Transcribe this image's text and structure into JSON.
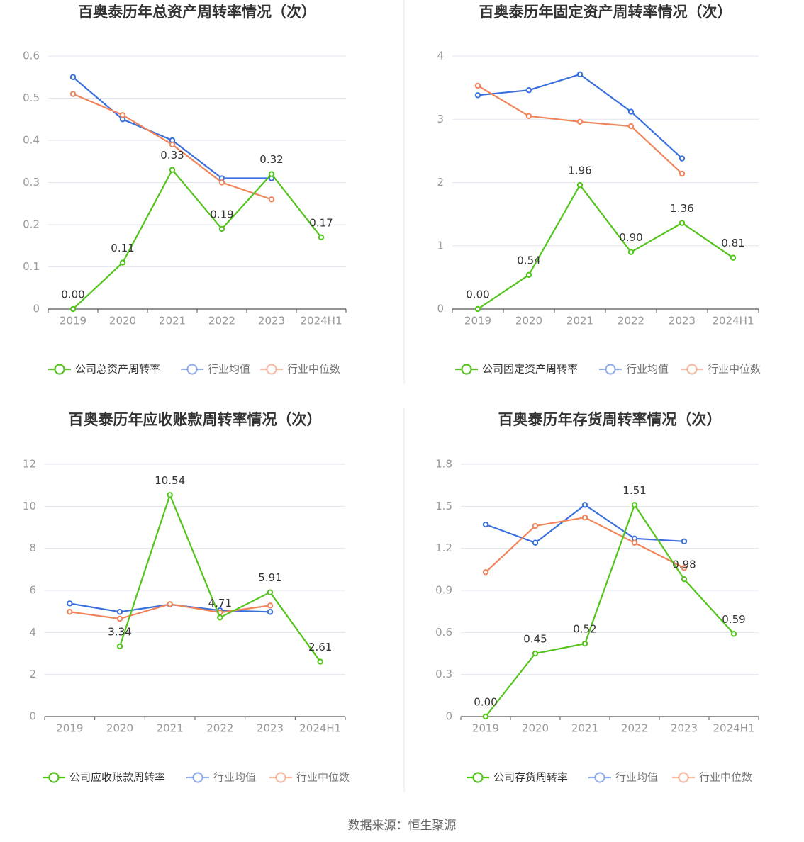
{
  "source": "数据来源：恒生聚源",
  "colors": {
    "company": "#52c41a",
    "avg": "#3a70dd",
    "median": "#f0845a",
    "grid": "#e3e6ef",
    "axis": "#555555",
    "tick": "#999999",
    "title": "#333333"
  },
  "chart_data": [
    {
      "type": "line",
      "title": "百奥泰历年总资产周转率情况（次）",
      "categories": [
        "2019",
        "2020",
        "2021",
        "2022",
        "2023",
        "2024H1"
      ],
      "yticks": [
        "0",
        "0.1",
        "0.2",
        "0.3",
        "0.4",
        "0.5",
        "0.6"
      ],
      "ylim": [
        0,
        0.6
      ],
      "series": [
        {
          "name": "公司总资产周转率",
          "role": "company",
          "values": [
            0.0,
            0.11,
            0.33,
            0.19,
            0.32,
            0.17
          ],
          "labels": [
            "0.00",
            "0.11",
            "0.33",
            "0.19",
            "0.32",
            "0.17"
          ]
        },
        {
          "name": "行业均值",
          "role": "avg",
          "values": [
            0.55,
            0.45,
            0.4,
            0.31,
            0.31,
            null
          ]
        },
        {
          "name": "行业中位数",
          "role": "median",
          "values": [
            0.51,
            0.46,
            0.39,
            0.3,
            0.26,
            null
          ]
        }
      ]
    },
    {
      "type": "line",
      "title": "百奥泰历年固定资产周转率情况（次）",
      "categories": [
        "2019",
        "2020",
        "2021",
        "2022",
        "2023",
        "2024H1"
      ],
      "yticks": [
        "0",
        "1",
        "2",
        "3",
        "4"
      ],
      "ylim": [
        0,
        4
      ],
      "series": [
        {
          "name": "公司固定资产周转率",
          "role": "company",
          "values": [
            0.0,
            0.54,
            1.96,
            0.9,
            1.36,
            0.81
          ],
          "labels": [
            "0.00",
            "0.54",
            "1.96",
            "0.90",
            "1.36",
            "0.81"
          ]
        },
        {
          "name": "行业均值",
          "role": "avg",
          "values": [
            3.38,
            3.46,
            3.71,
            3.12,
            2.38,
            null
          ]
        },
        {
          "name": "行业中位数",
          "role": "median",
          "values": [
            3.53,
            3.05,
            2.96,
            2.89,
            2.14,
            null
          ]
        }
      ]
    },
    {
      "type": "line",
      "title": "百奥泰历年应收账款周转率情况（次）",
      "categories": [
        "2019",
        "2020",
        "2021",
        "2022",
        "2023",
        "2024H1"
      ],
      "yticks": [
        "0",
        "2",
        "4",
        "6",
        "8",
        "10",
        "12"
      ],
      "ylim": [
        0,
        12
      ],
      "series": [
        {
          "name": "公司应收账款周转率",
          "role": "company",
          "values": [
            null,
            3.34,
            10.54,
            4.71,
            5.91,
            2.61
          ],
          "labels": [
            "",
            "3.34",
            "10.54",
            "4.71",
            "5.91",
            "2.61"
          ]
        },
        {
          "name": "行业均值",
          "role": "avg",
          "values": [
            5.38,
            4.98,
            5.33,
            5.05,
            4.98,
            null
          ]
        },
        {
          "name": "行业中位数",
          "role": "median",
          "values": [
            4.98,
            4.65,
            5.35,
            4.95,
            5.28,
            null
          ]
        }
      ]
    },
    {
      "type": "line",
      "title": "百奥泰历年存货周转率情况（次）",
      "categories": [
        "2019",
        "2020",
        "2021",
        "2022",
        "2023",
        "2024H1"
      ],
      "yticks": [
        "0",
        "0.3",
        "0.6",
        "0.9",
        "1.2",
        "1.5",
        "1.8"
      ],
      "ylim": [
        0,
        1.8
      ],
      "series": [
        {
          "name": "公司存货周转率",
          "role": "company",
          "values": [
            0.0,
            0.45,
            0.52,
            1.51,
            0.98,
            0.59
          ],
          "labels": [
            "0.00",
            "0.45",
            "0.52",
            "1.51",
            "0.98",
            "0.59"
          ]
        },
        {
          "name": "行业均值",
          "role": "avg",
          "values": [
            1.37,
            1.24,
            1.51,
            1.27,
            1.25,
            null
          ]
        },
        {
          "name": "行业中位数",
          "role": "median",
          "values": [
            1.03,
            1.36,
            1.42,
            1.24,
            1.06,
            null
          ]
        }
      ]
    }
  ]
}
